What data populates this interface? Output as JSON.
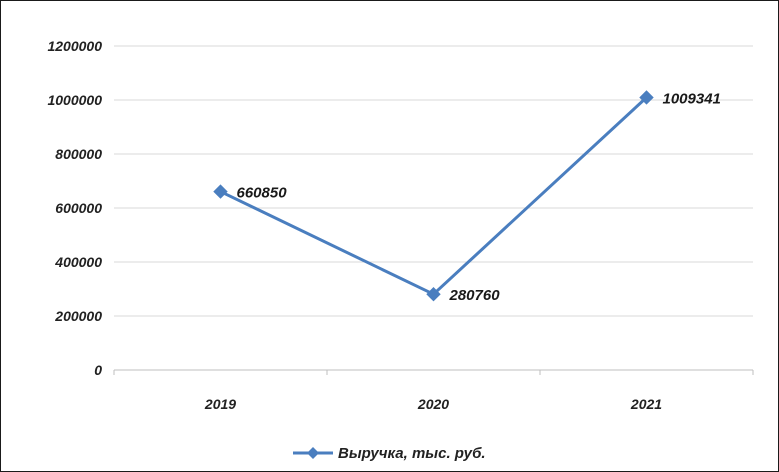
{
  "chart_data": {
    "type": "line",
    "categories": [
      "2019",
      "2020",
      "2021"
    ],
    "series": [
      {
        "name": "Выручка, тыс. руб.",
        "values": [
          660850,
          280760,
          1009341
        ],
        "data_labels": [
          "660850",
          "280760",
          "1009341"
        ],
        "color": "#4a7ebf",
        "marker": "diamond"
      }
    ],
    "ylim": [
      0,
      1200000
    ],
    "y_ticks": [
      "1200000",
      "1000000",
      "800000",
      "600000",
      "400000",
      "200000",
      "0"
    ],
    "grid": true,
    "legend_position": "bottom",
    "title": "",
    "xlabel": "",
    "ylabel": ""
  }
}
